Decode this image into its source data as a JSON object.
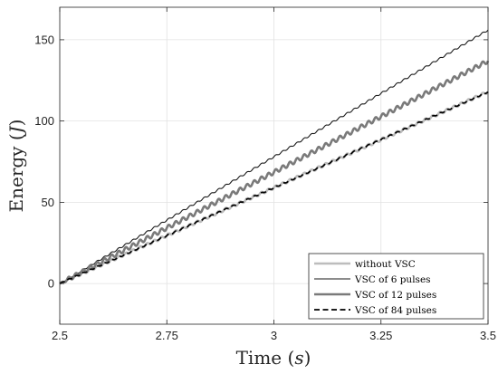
{
  "chart_data": {
    "type": "line",
    "xlabel": "Time ",
    "xlabel_unit": "s",
    "ylabel": "Energy ",
    "ylabel_unit": "J",
    "xlim": [
      2.5,
      3.5
    ],
    "ylim": [
      -25,
      170
    ],
    "xticks": [
      2.5,
      2.75,
      3,
      3.25,
      3.5
    ],
    "xtick_labels": [
      "2.5",
      "2.75",
      "3",
      "3.25",
      "3.5"
    ],
    "yticks": [
      0,
      50,
      100,
      150
    ],
    "ytick_labels": [
      "0",
      "50",
      "100",
      "150"
    ],
    "grid": true,
    "legend_position": "bottom-right",
    "series": [
      {
        "name": "without VSC",
        "color": "#bdbdbd",
        "style": "solid-thick",
        "x": [
          2.5,
          2.6,
          2.7,
          2.8,
          2.9,
          3.0,
          3.1,
          3.2,
          3.3,
          3.4,
          3.5
        ],
        "y": [
          0,
          11.8,
          23.6,
          35.4,
          47.2,
          59,
          70.8,
          82.6,
          94.4,
          106.2,
          118
        ],
        "ripple": 0.8,
        "ripple_cycles": 60
      },
      {
        "name": "VSC of 6 pulses",
        "color": "#1a1a1a",
        "style": "solid-thin",
        "x": [
          2.5,
          2.6,
          2.7,
          2.8,
          2.9,
          3.0,
          3.1,
          3.2,
          3.3,
          3.4,
          3.5
        ],
        "y": [
          0,
          15.6,
          31.2,
          46.8,
          62.4,
          78,
          93.6,
          109.2,
          124.8,
          140.4,
          156
        ],
        "ripple": 0.5,
        "ripple_cycles": 60
      },
      {
        "name": "VSC of 12 pulses",
        "color": "#7a7a7a",
        "style": "solid-thick",
        "x": [
          2.5,
          2.6,
          2.7,
          2.8,
          2.9,
          3.0,
          3.1,
          3.2,
          3.3,
          3.4,
          3.5
        ],
        "y": [
          0,
          13.7,
          27.4,
          41.1,
          54.8,
          68.5,
          82.2,
          95.9,
          109.6,
          123.3,
          137
        ],
        "ripple": 1.3,
        "ripple_cycles": 60
      },
      {
        "name": "VSC of 84 pulses",
        "color": "#000000",
        "style": "dashed",
        "x": [
          2.5,
          2.6,
          2.7,
          2.8,
          2.9,
          3.0,
          3.1,
          3.2,
          3.3,
          3.4,
          3.5
        ],
        "y": [
          0,
          11.8,
          23.6,
          35.4,
          47.2,
          59,
          70.8,
          82.6,
          94.4,
          106.2,
          118
        ],
        "ripple": 0.4,
        "ripple_cycles": 60
      }
    ]
  }
}
